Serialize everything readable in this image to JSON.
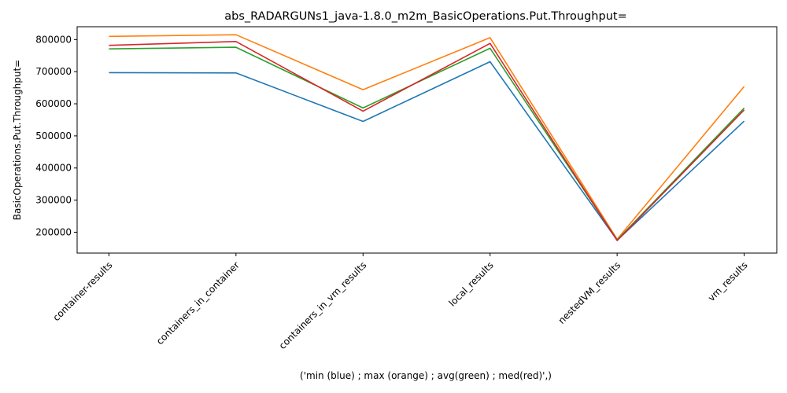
{
  "chart_data": {
    "type": "line",
    "title": "abs_RADARGUNs1_java-1.8.0_m2m_BasicOperations.Put.Throughput=",
    "xlabel": "('min (blue) ; max (orange) ; avg(green) ; med(red)',)",
    "ylabel": "BasicOperations.Put.Throughput=",
    "categories": [
      "container-results",
      "containers_in_container",
      "containers_in_vm_results",
      "local_results",
      "nestedVM_results",
      "vm_results"
    ],
    "ylim": [
      135000,
      840000
    ],
    "yticks": [
      200000,
      300000,
      400000,
      500000,
      600000,
      700000,
      800000
    ],
    "ytick_labels": [
      "200000",
      "300000",
      "400000",
      "500000",
      "600000",
      "700000",
      "800000"
    ],
    "grid": false,
    "series": [
      {
        "color": "#1f77b4",
        "values": [
          697000,
          696000,
          545000,
          731000,
          175000,
          546000
        ]
      },
      {
        "color": "#ff7f0e",
        "values": [
          810000,
          815000,
          644000,
          806000,
          178000,
          654000
        ]
      },
      {
        "color": "#2ca02c",
        "values": [
          771000,
          776000,
          587000,
          773000,
          176000,
          587000
        ]
      },
      {
        "color": "#d62728",
        "values": [
          782000,
          794000,
          577000,
          788000,
          174000,
          581000
        ]
      }
    ]
  }
}
